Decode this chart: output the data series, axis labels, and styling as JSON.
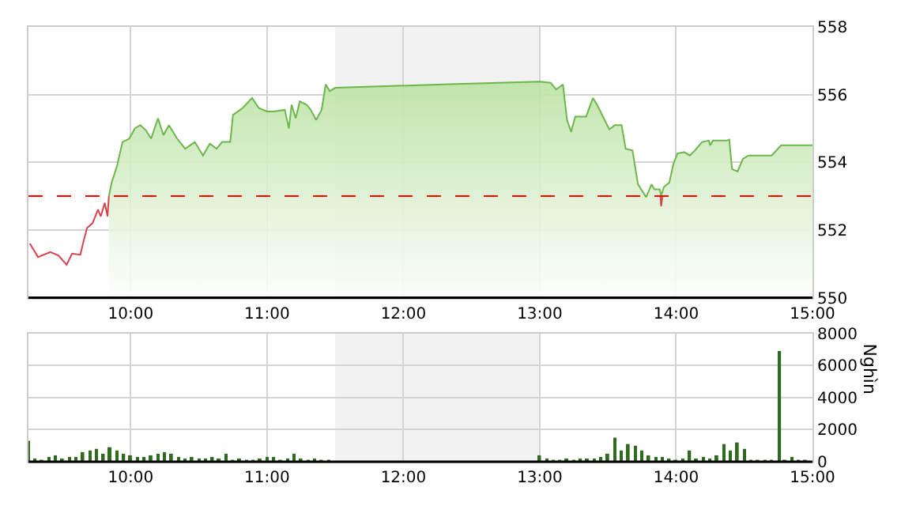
{
  "chart_data": [
    {
      "type": "line",
      "xlim": [
        9.25,
        15
      ],
      "ylim": [
        550,
        558
      ],
      "yticks": [
        550,
        552,
        554,
        556,
        558
      ],
      "xticks": [
        {
          "value": 10,
          "label": "10:00"
        },
        {
          "value": 11,
          "label": "11:00"
        },
        {
          "value": 12,
          "label": "12:00"
        },
        {
          "value": 13,
          "label": "13:00"
        },
        {
          "value": 14,
          "label": "14:00"
        },
        {
          "value": 15,
          "label": "15:00"
        }
      ],
      "grid": true,
      "marker": "none",
      "bands": [
        {
          "axis": "x",
          "from": 11.5,
          "to": 13,
          "color": "#f2f2f2"
        }
      ],
      "ref_lines": [
        {
          "axis": "y",
          "value": 553,
          "color": "#ff0000",
          "line_style": "dashed"
        }
      ],
      "series": [
        {
          "type": "line",
          "color": "#d9434e",
          "x": [
            9.26,
            9.32,
            9.41,
            9.47,
            9.53,
            9.57,
            9.63,
            9.66,
            9.68,
            9.72,
            9.76,
            9.78,
            9.81,
            9.83,
            9.84,
            null,
            13.885,
            13.89,
            13.9
          ],
          "values": [
            551.6,
            551.2,
            551.35,
            551.25,
            550.97,
            551.3,
            551.27,
            551.76,
            552.06,
            552.2,
            552.6,
            552.4,
            552.8,
            552.4,
            553.0,
            null,
            553.0,
            552.7,
            553.0
          ]
        },
        {
          "type": "area",
          "color": "#6cb64c",
          "x": [
            9.84,
            9.86,
            9.9,
            9.94,
            9.99,
            10.03,
            10.07,
            10.11,
            10.15,
            10.2,
            10.24,
            10.28,
            10.34,
            10.4,
            10.47,
            10.53,
            10.58,
            10.63,
            10.67,
            10.73,
            10.75,
            10.82,
            10.89,
            10.94,
            11.0,
            11.05,
            11.13,
            11.16,
            11.18,
            11.21,
            11.24,
            11.29,
            11.32,
            11.36,
            11.4,
            11.43,
            11.46,
            11.5,
            12.29,
            13.0,
            13.08,
            13.12,
            13.17,
            13.2,
            13.23,
            13.26,
            13.34,
            13.39,
            13.42,
            13.51,
            13.55,
            13.6,
            13.63,
            13.68,
            13.72,
            13.78,
            13.82,
            13.84,
            13.88,
            13.89,
            13.91,
            13.95,
            13.98,
            14.01,
            14.06,
            14.1,
            14.14,
            14.19,
            14.24,
            14.25,
            14.27,
            14.37,
            14.39,
            14.41,
            14.45,
            14.49,
            14.53,
            14.7,
            14.77,
            15.0
          ],
          "values": [
            553.0,
            553.4,
            553.9,
            554.6,
            554.7,
            555.0,
            555.1,
            554.95,
            554.7,
            555.3,
            554.8,
            555.1,
            554.7,
            554.4,
            554.6,
            554.2,
            554.55,
            554.4,
            554.6,
            554.6,
            555.4,
            555.6,
            555.9,
            555.6,
            555.5,
            555.5,
            555.55,
            555.0,
            555.7,
            555.3,
            555.8,
            555.7,
            555.55,
            555.25,
            555.55,
            556.3,
            556.1,
            556.2,
            556.3,
            556.38,
            556.35,
            556.15,
            556.3,
            555.25,
            554.9,
            555.35,
            555.35,
            555.9,
            555.7,
            554.97,
            555.1,
            555.1,
            554.4,
            554.35,
            553.35,
            552.97,
            553.35,
            553.2,
            553.2,
            553.0,
            553.27,
            553.4,
            553.95,
            554.26,
            554.3,
            554.2,
            554.36,
            554.6,
            554.64,
            554.5,
            554.64,
            554.64,
            554.67,
            553.8,
            553.73,
            554.1,
            554.2,
            554.2,
            554.5,
            554.5
          ]
        }
      ]
    },
    {
      "type": "bar",
      "xlim": [
        9.25,
        15
      ],
      "ylim": [
        0,
        8000
      ],
      "yticks": [
        0,
        2000,
        4000,
        6000,
        8000
      ],
      "xticks": [
        {
          "value": 10,
          "label": "10:00"
        },
        {
          "value": 11,
          "label": "11:00"
        },
        {
          "value": 12,
          "label": "12:00"
        },
        {
          "value": 13,
          "label": "13:00"
        },
        {
          "value": 14,
          "label": "14:00"
        },
        {
          "value": 15,
          "label": "15:00"
        }
      ],
      "ylabel": "Nghìn",
      "grid": true,
      "bands": [
        {
          "axis": "x",
          "from": 11.5,
          "to": 13,
          "color": "#f2f2f2"
        }
      ],
      "series": [
        {
          "color": "#2e6b1f",
          "x": [
            9.25,
            9.3,
            9.35,
            9.4,
            9.45,
            9.5,
            9.55,
            9.6,
            9.65,
            9.7,
            9.75,
            9.8,
            9.85,
            9.9,
            9.95,
            10.0,
            10.05,
            10.1,
            10.15,
            10.2,
            10.25,
            10.3,
            10.35,
            10.4,
            10.45,
            10.5,
            10.55,
            10.6,
            10.65,
            10.7,
            10.75,
            10.8,
            10.85,
            10.9,
            10.95,
            11.0,
            11.05,
            11.1,
            11.15,
            11.2,
            11.25,
            11.3,
            11.35,
            11.4,
            11.45,
            13.0,
            13.05,
            13.1,
            13.15,
            13.2,
            13.25,
            13.3,
            13.35,
            13.4,
            13.45,
            13.5,
            13.55,
            13.6,
            13.65,
            13.7,
            13.75,
            13.8,
            13.85,
            13.9,
            13.95,
            14.0,
            14.05,
            14.1,
            14.15,
            14.2,
            14.25,
            14.3,
            14.35,
            14.4,
            14.45,
            14.5,
            14.55,
            14.6,
            14.65,
            14.7,
            14.76,
            14.8,
            14.85,
            14.9,
            14.95
          ],
          "values": [
            1300,
            200,
            100,
            300,
            400,
            200,
            300,
            300,
            600,
            700,
            800,
            500,
            900,
            700,
            500,
            400,
            300,
            300,
            400,
            500,
            600,
            500,
            300,
            200,
            300,
            200,
            200,
            300,
            200,
            500,
            100,
            200,
            100,
            100,
            200,
            300,
            300,
            100,
            200,
            500,
            200,
            100,
            200,
            100,
            100,
            400,
            200,
            100,
            100,
            200,
            100,
            200,
            200,
            200,
            300,
            500,
            1500,
            700,
            1100,
            1000,
            700,
            400,
            300,
            300,
            200,
            100,
            200,
            700,
            200,
            300,
            200,
            400,
            1100,
            700,
            1200,
            800,
            100,
            100,
            100,
            100,
            6900,
            100,
            300,
            100,
            100
          ]
        }
      ]
    }
  ]
}
